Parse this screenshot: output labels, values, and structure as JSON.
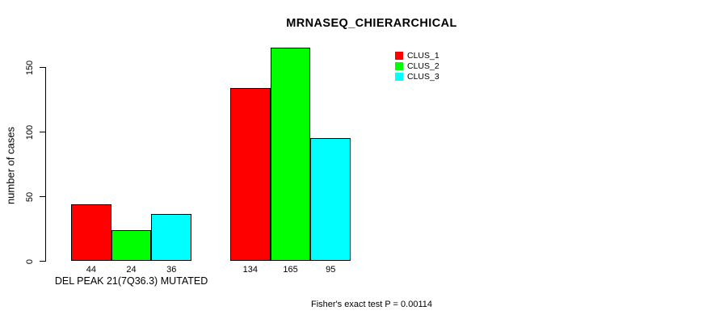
{
  "chart_data": {
    "type": "bar",
    "title": "MRNASEQ_CHIERARCHICAL",
    "ylabel": "number of cases",
    "xlabel": "",
    "yticks": [
      0,
      50,
      100,
      150
    ],
    "ylim": [
      0,
      165
    ],
    "grid": false,
    "legend_position": "top-right",
    "categories": [
      "DEL PEAK 21(7Q36.3) MUTATED",
      ""
    ],
    "series": [
      {
        "name": "CLUS_1",
        "color": "#ff0000",
        "values": [
          44,
          134
        ]
      },
      {
        "name": "CLUS_2",
        "color": "#00ff00",
        "values": [
          24,
          165
        ]
      },
      {
        "name": "CLUS_3",
        "color": "#00ffff",
        "values": [
          36,
          95
        ]
      }
    ],
    "bar_value_labels": [
      [
        44,
        24,
        36
      ],
      [
        134,
        165,
        95
      ]
    ],
    "annotation": "Fisher's exact test P = 0.00114"
  },
  "colors": {
    "background": "#ffffff",
    "axis": "#000000",
    "clus_1": "#ff0000",
    "clus_2": "#00ff00",
    "clus_3": "#00ffff"
  }
}
